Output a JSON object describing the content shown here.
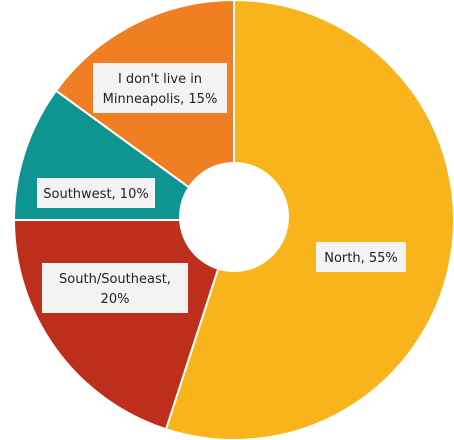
{
  "chart_data": {
    "type": "pie",
    "title": "",
    "slices": [
      {
        "label": "North",
        "value": 55,
        "color": "#F8B41A",
        "text_lines": [
          "North, 55%"
        ]
      },
      {
        "label": "South/Southeast",
        "value": 20,
        "color": "#BD2E1B",
        "text_lines": [
          "South/Southeast,",
          "20%"
        ]
      },
      {
        "label": "Southwest",
        "value": 10,
        "color": "#0E9591",
        "text_lines": [
          "Southwest, 10%"
        ]
      },
      {
        "label": "I don't live in Minneapolis",
        "value": 15,
        "color": "#F07F23",
        "text_lines": [
          "I don't live in",
          "Minneapolis, 15%"
        ]
      }
    ],
    "donut": true
  }
}
